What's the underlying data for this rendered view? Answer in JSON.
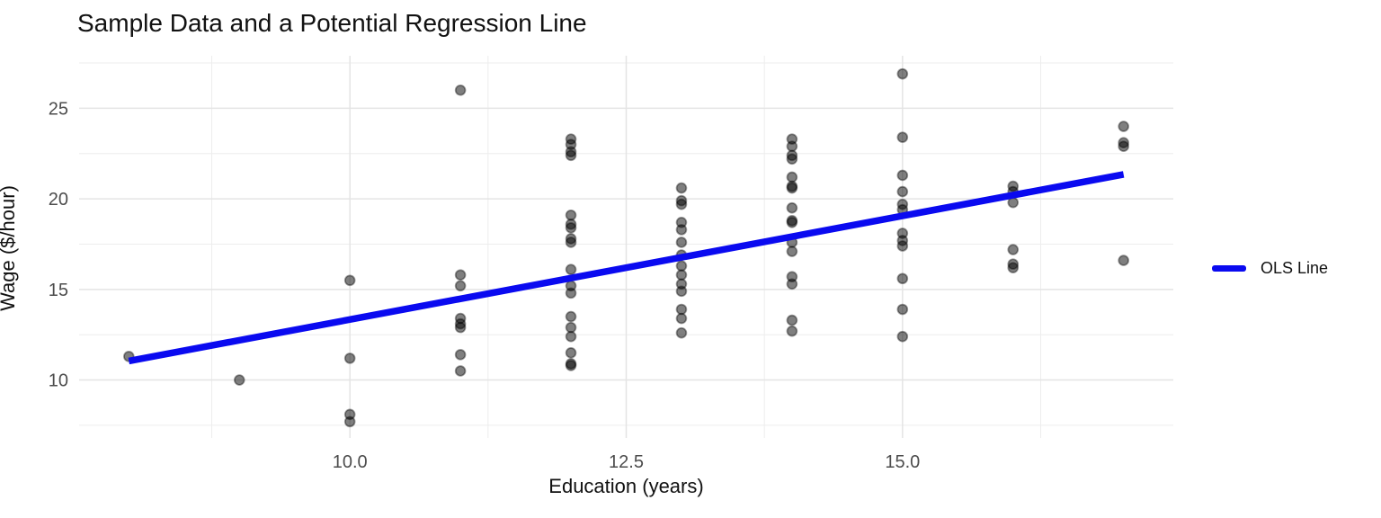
{
  "chart_data": {
    "type": "scatter",
    "title": "Sample Data and a Potential Regression Line",
    "xlabel": "Education (years)",
    "ylabel": "Wage ($/hour)",
    "xlim": [
      7.55,
      17.45
    ],
    "ylim": [
      6.8,
      27.9
    ],
    "grid": "on",
    "legend": {
      "label": "OLS Line",
      "position": "right"
    },
    "x_ticks": [
      {
        "value": 10,
        "label": "10.0"
      },
      {
        "value": 12.5,
        "label": "12.5"
      },
      {
        "value": 15,
        "label": "15.0"
      }
    ],
    "y_ticks": [
      {
        "value": 10,
        "label": "10"
      },
      {
        "value": 15,
        "label": "15"
      },
      {
        "value": 20,
        "label": "20"
      },
      {
        "value": 25,
        "label": "25"
      }
    ],
    "x_minor_gridlines": [
      8.75,
      11.25,
      13.75,
      16.25
    ],
    "y_minor_gridlines": [
      7.5,
      12.5,
      17.5,
      22.5,
      27.5
    ],
    "points": [
      [
        8,
        11.3
      ],
      [
        9,
        10.0
      ],
      [
        10,
        15.5
      ],
      [
        10,
        11.2
      ],
      [
        10,
        8.1
      ],
      [
        10,
        7.7
      ],
      [
        11,
        26.0
      ],
      [
        11,
        15.8
      ],
      [
        11,
        15.2
      ],
      [
        11,
        13.4
      ],
      [
        11,
        13.1
      ],
      [
        11,
        12.9
      ],
      [
        11,
        11.4
      ],
      [
        11,
        10.5
      ],
      [
        12,
        23.3
      ],
      [
        12,
        23.0
      ],
      [
        12,
        22.6
      ],
      [
        12,
        22.4
      ],
      [
        12,
        19.1
      ],
      [
        12,
        18.6
      ],
      [
        12,
        18.4
      ],
      [
        12,
        17.8
      ],
      [
        12,
        17.6
      ],
      [
        12,
        16.1
      ],
      [
        12,
        15.2
      ],
      [
        12,
        14.8
      ],
      [
        12,
        13.5
      ],
      [
        12,
        12.9
      ],
      [
        12,
        12.4
      ],
      [
        12,
        11.5
      ],
      [
        12,
        10.9
      ],
      [
        12,
        10.8
      ],
      [
        13,
        20.6
      ],
      [
        13,
        19.9
      ],
      [
        13,
        19.7
      ],
      [
        13,
        18.7
      ],
      [
        13,
        18.3
      ],
      [
        13,
        17.6
      ],
      [
        13,
        16.9
      ],
      [
        13,
        16.3
      ],
      [
        13,
        15.8
      ],
      [
        13,
        15.3
      ],
      [
        13,
        14.9
      ],
      [
        13,
        13.9
      ],
      [
        13,
        13.4
      ],
      [
        13,
        12.6
      ],
      [
        14,
        23.3
      ],
      [
        14,
        22.9
      ],
      [
        14,
        22.4
      ],
      [
        14,
        22.2
      ],
      [
        14,
        21.2
      ],
      [
        14,
        20.7
      ],
      [
        14,
        20.6
      ],
      [
        14,
        19.5
      ],
      [
        14,
        18.8
      ],
      [
        14,
        18.7
      ],
      [
        14,
        17.6
      ],
      [
        14,
        17.1
      ],
      [
        14,
        15.7
      ],
      [
        14,
        15.3
      ],
      [
        14,
        13.3
      ],
      [
        14,
        12.7
      ],
      [
        15,
        26.9
      ],
      [
        15,
        23.4
      ],
      [
        15,
        21.3
      ],
      [
        15,
        20.4
      ],
      [
        15,
        19.7
      ],
      [
        15,
        19.4
      ],
      [
        15,
        18.1
      ],
      [
        15,
        17.7
      ],
      [
        15,
        17.4
      ],
      [
        15,
        15.6
      ],
      [
        15,
        13.9
      ],
      [
        15,
        12.4
      ],
      [
        16,
        20.7
      ],
      [
        16,
        20.4
      ],
      [
        16,
        19.8
      ],
      [
        16,
        17.2
      ],
      [
        16,
        16.4
      ],
      [
        16,
        16.2
      ],
      [
        17,
        24.0
      ],
      [
        17,
        23.1
      ],
      [
        17,
        22.9
      ],
      [
        17,
        16.6
      ]
    ],
    "ols_line": {
      "x1": 8,
      "y1": 11.05,
      "x2": 17,
      "y2": 21.35
    },
    "colors": {
      "ols_line": "#0A0AF0",
      "point_fill": "#000000",
      "grid_major": "#E4E4E4",
      "grid_minor": "#EDEDED",
      "tick_text": "#4D4D4D",
      "text": "#111111",
      "background": "#FFFFFF"
    }
  }
}
